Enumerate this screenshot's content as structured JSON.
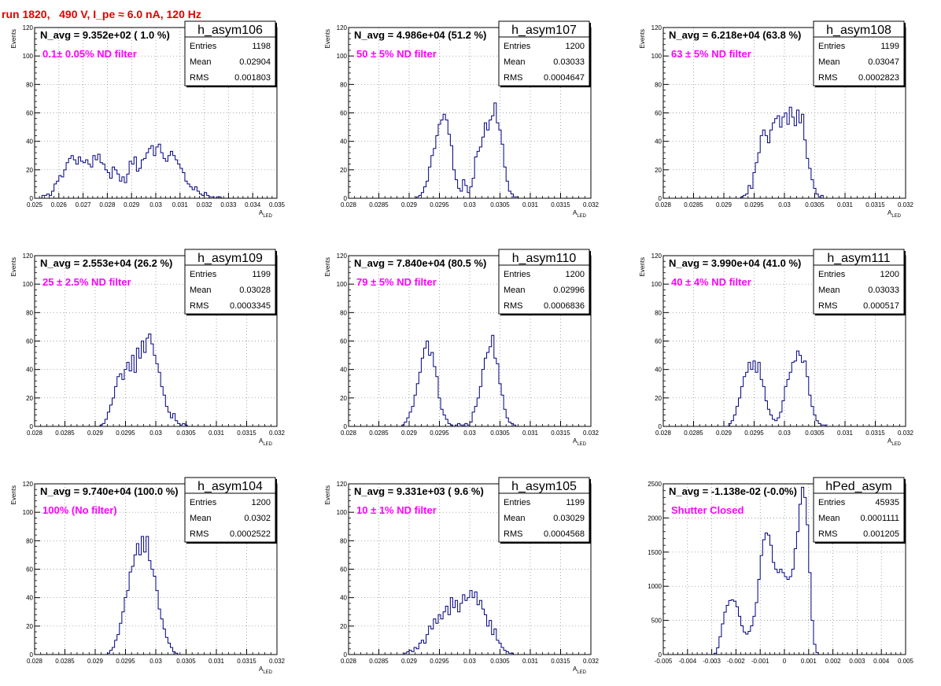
{
  "page_title": "run 1820,   490 V, I_pe ≈ 6.0 nA, 120 Hz",
  "colors": {
    "title": "#e30000",
    "hist": "#00007f",
    "annotation": "#ff00ff",
    "grid": "#808080"
  },
  "chart_data": [
    {
      "type": "histogram",
      "name": "h_asym106",
      "navg": "N_avg = 9.352e+02 ( 1.0 %)",
      "note": "0.1± 0.05% ND filter",
      "stats": [
        [
          "Entries",
          "1198"
        ],
        [
          "Mean",
          "0.02904"
        ],
        [
          "RMS",
          "0.001803"
        ]
      ],
      "ylabel": "Events",
      "xlabel": "A_LED",
      "grid": true,
      "xlim": [
        0.025,
        0.035
      ],
      "ylim": [
        0,
        120
      ],
      "xticks": [
        "0.025",
        "0.026",
        "0.027",
        "0.028",
        "0.029",
        "0.03",
        "0.031",
        "0.032",
        "0.033",
        "0.034",
        "0.035"
      ],
      "yticks": [
        "0",
        "20",
        "40",
        "60",
        "80",
        "100",
        "120"
      ],
      "bin_width": 0.0001,
      "values": [
        0,
        0,
        0,
        2,
        2,
        3,
        2,
        5,
        10,
        12,
        16,
        15,
        20,
        25,
        28,
        30,
        27,
        24,
        29,
        26,
        25,
        27,
        24,
        22,
        30,
        27,
        31,
        25,
        24,
        20,
        18,
        14,
        22,
        20,
        17,
        12,
        15,
        11,
        17,
        26,
        24,
        29,
        19,
        21,
        27,
        28,
        32,
        35,
        37,
        30,
        36,
        38,
        32,
        28,
        26,
        30,
        33,
        30,
        27,
        24,
        21,
        18,
        12,
        10,
        8,
        6,
        8,
        5,
        3,
        2,
        4,
        2,
        1,
        1,
        0,
        1,
        1,
        0,
        0,
        0,
        0,
        0,
        0,
        0,
        0,
        0,
        0,
        0,
        0,
        0,
        0,
        0,
        0,
        0,
        0,
        0,
        0,
        0,
        0,
        0
      ]
    },
    {
      "type": "histogram",
      "name": "h_asym107",
      "navg": "N_avg = 4.986e+04 (51.2 %)",
      "note": "50 ± 5% ND filter",
      "stats": [
        [
          "Entries",
          "1200"
        ],
        [
          "Mean",
          "0.03033"
        ],
        [
          "RMS",
          "0.0004647"
        ]
      ],
      "ylabel": "Events",
      "xlabel": "A_LED",
      "grid": true,
      "xlim": [
        0.028,
        0.032
      ],
      "ylim": [
        0,
        120
      ],
      "xticks": [
        "0.028",
        "0.0285",
        "0.029",
        "0.0295",
        "0.03",
        "0.0305",
        "0.031",
        "0.0315",
        "0.032"
      ],
      "yticks": [
        "0",
        "20",
        "40",
        "60",
        "80",
        "100",
        "120"
      ],
      "bin_width": 4e-05,
      "values": [
        0,
        0,
        0,
        0,
        0,
        0,
        0,
        0,
        0,
        0,
        0,
        0,
        0,
        0,
        0,
        0,
        0,
        0,
        0,
        0,
        0,
        0,
        0,
        0,
        0,
        0,
        0,
        0,
        1,
        2,
        4,
        8,
        12,
        22,
        30,
        35,
        44,
        52,
        55,
        59,
        55,
        45,
        37,
        20,
        13,
        7,
        5,
        13,
        9,
        4,
        8,
        14,
        29,
        33,
        36,
        43,
        53,
        48,
        55,
        58,
        67,
        53,
        48,
        38,
        22,
        12,
        5,
        3,
        1,
        1,
        0,
        0,
        0,
        0,
        0,
        0,
        0,
        0,
        0,
        0,
        0,
        0,
        0,
        0,
        0,
        0,
        0,
        0,
        0,
        0,
        0,
        0,
        0,
        0,
        0,
        0,
        0,
        0,
        0,
        0
      ]
    },
    {
      "type": "histogram",
      "name": "h_asym108",
      "navg": "N_avg = 6.218e+04 (63.8 %)",
      "note": "63 ± 5% ND filter",
      "stats": [
        [
          "Entries",
          "1199"
        ],
        [
          "Mean",
          "0.03047"
        ],
        [
          "RMS",
          "0.0002823"
        ]
      ],
      "ylabel": "Events",
      "xlabel": "A_LED",
      "grid": true,
      "xlim": [
        0.028,
        0.032
      ],
      "ylim": [
        0,
        120
      ],
      "xticks": [
        "0.028",
        "0.0285",
        "0.029",
        "0.0295",
        "0.03",
        "0.0305",
        "0.031",
        "0.0315",
        "0.032"
      ],
      "yticks": [
        "0",
        "20",
        "40",
        "60",
        "80",
        "100",
        "120"
      ],
      "bin_width": 4e-05,
      "values": [
        0,
        0,
        0,
        0,
        0,
        0,
        0,
        0,
        0,
        0,
        0,
        0,
        0,
        0,
        0,
        0,
        0,
        0,
        0,
        0,
        0,
        0,
        0,
        0,
        0,
        0,
        0,
        0,
        0,
        0,
        0,
        0,
        1,
        2,
        3,
        9,
        7,
        18,
        25,
        32,
        44,
        48,
        44,
        39,
        48,
        53,
        56,
        58,
        50,
        57,
        60,
        52,
        64,
        57,
        51,
        62,
        53,
        59,
        41,
        28,
        21,
        13,
        7,
        3,
        1,
        2,
        0,
        0,
        0,
        0,
        0,
        0,
        0,
        0,
        0,
        0,
        0,
        0,
        0,
        0,
        0,
        0,
        0,
        0,
        0,
        0,
        0,
        0,
        0,
        0,
        0,
        0,
        0,
        0,
        0,
        0,
        0,
        0,
        0,
        0
      ]
    },
    {
      "type": "histogram",
      "name": "h_asym109",
      "navg": "N_avg = 2.553e+04 (26.2 %)",
      "note": "25 ± 2.5% ND filter",
      "stats": [
        [
          "Entries",
          "1199"
        ],
        [
          "Mean",
          "0.03028"
        ],
        [
          "RMS",
          "0.0003345"
        ]
      ],
      "ylabel": "Events",
      "xlabel": "A_LED",
      "grid": true,
      "xlim": [
        0.028,
        0.032
      ],
      "ylim": [
        0,
        120
      ],
      "xticks": [
        "0.028",
        "0.0285",
        "0.029",
        "0.0295",
        "0.03",
        "0.0305",
        "0.031",
        "0.0315",
        "0.032"
      ],
      "yticks": [
        "0",
        "20",
        "40",
        "60",
        "80",
        "100",
        "120"
      ],
      "bin_width": 4e-05,
      "values": [
        0,
        0,
        0,
        0,
        0,
        0,
        0,
        0,
        0,
        0,
        0,
        0,
        0,
        0,
        0,
        0,
        0,
        0,
        0,
        0,
        0,
        0,
        0,
        0,
        0,
        0,
        0,
        1,
        2,
        5,
        10,
        15,
        20,
        28,
        35,
        37,
        33,
        40,
        45,
        39,
        50,
        38,
        55,
        48,
        60,
        52,
        62,
        65,
        58,
        50,
        44,
        38,
        28,
        22,
        14,
        10,
        6,
        9,
        4,
        2,
        1,
        2,
        1,
        0,
        0,
        0,
        0,
        0,
        0,
        0,
        0,
        0,
        0,
        0,
        0,
        0,
        0,
        0,
        0,
        0,
        0,
        0,
        0,
        0,
        0,
        0,
        0,
        0,
        0,
        0,
        0,
        0,
        0,
        0,
        0,
        0,
        0,
        0,
        0,
        0
      ]
    },
    {
      "type": "histogram",
      "name": "h_asym110",
      "navg": "N_avg = 7.840e+04 (80.5 %)",
      "note": "79 ± 5% ND filter",
      "stats": [
        [
          "Entries",
          "1200"
        ],
        [
          "Mean",
          "0.02996"
        ],
        [
          "RMS",
          "0.0006836"
        ]
      ],
      "ylabel": "Events",
      "xlabel": "A_LED",
      "grid": true,
      "xlim": [
        0.028,
        0.032
      ],
      "ylim": [
        0,
        120
      ],
      "xticks": [
        "0.028",
        "0.0285",
        "0.029",
        "0.0295",
        "0.03",
        "0.0305",
        "0.031",
        "0.0315",
        "0.032"
      ],
      "yticks": [
        "0",
        "20",
        "40",
        "60",
        "80",
        "100",
        "120"
      ],
      "bin_width": 4e-05,
      "values": [
        0,
        0,
        0,
        0,
        0,
        0,
        0,
        0,
        0,
        0,
        0,
        0,
        0,
        0,
        0,
        0,
        0,
        0,
        0,
        0,
        0,
        0,
        1,
        3,
        6,
        10,
        14,
        22,
        30,
        38,
        48,
        55,
        60,
        50,
        52,
        42,
        35,
        20,
        12,
        8,
        5,
        2,
        1,
        0,
        1,
        2,
        1,
        0,
        2,
        1,
        3,
        10,
        14,
        20,
        28,
        40,
        48,
        52,
        56,
        64,
        48,
        44,
        30,
        22,
        12,
        6,
        3,
        2,
        1,
        0,
        0,
        0,
        0,
        0,
        0,
        0,
        0,
        0,
        0,
        0,
        0,
        0,
        0,
        0,
        0,
        0,
        0,
        0,
        0,
        0,
        0,
        0,
        0,
        0,
        0,
        0,
        0,
        0,
        0,
        0
      ]
    },
    {
      "type": "histogram",
      "name": "h_asym111",
      "navg": "N_avg = 3.990e+04 (41.0 %)",
      "note": "40 ± 4% ND filter",
      "stats": [
        [
          "Entries",
          "1200"
        ],
        [
          "Mean",
          "0.03033"
        ],
        [
          "RMS",
          "0.000517"
        ]
      ],
      "ylabel": "Events",
      "xlabel": "A_LED",
      "grid": true,
      "xlim": [
        0.028,
        0.032
      ],
      "ylim": [
        0,
        120
      ],
      "xticks": [
        "0.028",
        "0.0285",
        "0.029",
        "0.0295",
        "0.03",
        "0.0305",
        "0.031",
        "0.0315",
        "0.032"
      ],
      "yticks": [
        "0",
        "20",
        "40",
        "60",
        "80",
        "100",
        "120"
      ],
      "bin_width": 4e-05,
      "values": [
        0,
        0,
        0,
        0,
        0,
        0,
        0,
        0,
        0,
        0,
        0,
        0,
        0,
        0,
        0,
        0,
        0,
        0,
        0,
        0,
        0,
        0,
        0,
        0,
        0,
        0,
        0,
        2,
        4,
        8,
        14,
        20,
        28,
        35,
        38,
        45,
        40,
        46,
        38,
        45,
        33,
        28,
        18,
        12,
        8,
        5,
        4,
        6,
        10,
        18,
        28,
        33,
        38,
        45,
        46,
        53,
        50,
        45,
        46,
        35,
        22,
        14,
        8,
        4,
        2,
        1,
        1,
        0,
        0,
        0,
        0,
        0,
        0,
        0,
        0,
        0,
        0,
        0,
        0,
        0,
        0,
        0,
        0,
        0,
        0,
        0,
        0,
        0,
        0,
        0,
        0,
        0,
        0,
        0,
        0,
        0,
        0,
        0,
        0,
        0
      ]
    },
    {
      "type": "histogram",
      "name": "h_asym104",
      "navg": "N_avg = 9.740e+04 (100.0 %)",
      "note": "100% (No filter)",
      "stats": [
        [
          "Entries",
          "1200"
        ],
        [
          "Mean",
          "0.0302"
        ],
        [
          "RMS",
          "0.0002522"
        ]
      ],
      "ylabel": "Events",
      "xlabel": "A_LED",
      "grid": true,
      "xlim": [
        0.028,
        0.032
      ],
      "ylim": [
        0,
        120
      ],
      "xticks": [
        "0.028",
        "0.0285",
        "0.029",
        "0.0295",
        "0.03",
        "0.0305",
        "0.031",
        "0.0315",
        "0.032"
      ],
      "yticks": [
        "0",
        "20",
        "40",
        "60",
        "80",
        "100",
        "120"
      ],
      "bin_width": 4e-05,
      "values": [
        0,
        0,
        0,
        0,
        0,
        0,
        0,
        0,
        0,
        0,
        0,
        0,
        0,
        0,
        0,
        0,
        0,
        0,
        0,
        0,
        0,
        0,
        0,
        0,
        0,
        0,
        0,
        0,
        0,
        0,
        1,
        3,
        5,
        10,
        14,
        22,
        30,
        40,
        45,
        58,
        62,
        70,
        78,
        70,
        83,
        72,
        83,
        66,
        60,
        55,
        45,
        32,
        25,
        18,
        12,
        8,
        5,
        2,
        1,
        0,
        0,
        0,
        0,
        0,
        0,
        0,
        0,
        0,
        0,
        0,
        0,
        0,
        0,
        0,
        0,
        0,
        0,
        0,
        0,
        0,
        0,
        0,
        0,
        0,
        0,
        0,
        0,
        0,
        0,
        0,
        0,
        0,
        0,
        0,
        0,
        0,
        0,
        0,
        0,
        0
      ]
    },
    {
      "type": "histogram",
      "name": "h_asym105",
      "navg": "N_avg = 9.331e+03 ( 9.6 %)",
      "note": "10 ± 1% ND filter",
      "stats": [
        [
          "Entries",
          "1199"
        ],
        [
          "Mean",
          "0.03029"
        ],
        [
          "RMS",
          "0.0004568"
        ]
      ],
      "ylabel": "Events",
      "xlabel": "A_LED",
      "grid": true,
      "xlim": [
        0.028,
        0.032
      ],
      "ylim": [
        0,
        120
      ],
      "xticks": [
        "0.028",
        "0.0285",
        "0.029",
        "0.0295",
        "0.03",
        "0.0305",
        "0.031",
        "0.0315",
        "0.032"
      ],
      "yticks": [
        "0",
        "20",
        "40",
        "60",
        "80",
        "100",
        "120"
      ],
      "bin_width": 4e-05,
      "values": [
        0,
        0,
        0,
        0,
        0,
        0,
        0,
        0,
        0,
        0,
        0,
        0,
        0,
        0,
        0,
        0,
        0,
        0,
        0,
        0,
        0,
        0,
        0,
        1,
        2,
        3,
        2,
        5,
        4,
        8,
        10,
        8,
        14,
        20,
        18,
        25,
        22,
        28,
        25,
        30,
        34,
        28,
        40,
        33,
        38,
        30,
        36,
        42,
        38,
        40,
        45,
        40,
        44,
        35,
        38,
        32,
        28,
        20,
        24,
        14,
        18,
        10,
        8,
        5,
        3,
        2,
        1,
        1,
        0,
        0,
        0,
        0,
        0,
        0,
        0,
        0,
        0,
        0,
        0,
        0,
        0,
        0,
        0,
        0,
        0,
        0,
        0,
        0,
        0,
        0,
        0,
        0,
        0,
        0,
        0,
        0,
        0,
        0,
        0,
        0
      ]
    },
    {
      "type": "histogram",
      "name": "hPed_asym",
      "navg": "N_avg = -1.138e-02 (-0.0%)",
      "note": "Shutter Closed",
      "stats": [
        [
          "Entries",
          "45935"
        ],
        [
          "Mean",
          "0.0001111"
        ],
        [
          "RMS",
          "0.001205"
        ]
      ],
      "ylabel": "",
      "xlabel": "",
      "grid": true,
      "xlim": [
        -0.005,
        0.005
      ],
      "ylim": [
        0,
        2500
      ],
      "xticks": [
        "-0.005",
        "-0.004",
        "-0.003",
        "-0.002",
        "-0.001",
        "0",
        "0.001",
        "0.002",
        "0.003",
        "0.004",
        "0.005"
      ],
      "yticks": [
        "0",
        "500",
        "1000",
        "1500",
        "2000",
        "2500"
      ],
      "bin_width": 0.0001,
      "values": [
        0,
        0,
        0,
        0,
        0,
        0,
        0,
        0,
        0,
        0,
        0,
        0,
        0,
        0,
        0,
        0,
        0,
        0,
        0,
        0,
        0,
        20,
        100,
        260,
        450,
        620,
        720,
        790,
        800,
        780,
        700,
        560,
        420,
        330,
        300,
        340,
        420,
        560,
        760,
        1100,
        1450,
        1680,
        1780,
        1750,
        1600,
        1350,
        1250,
        1200,
        1250,
        1200,
        1140,
        1100,
        1140,
        1250,
        1550,
        1800,
        2200,
        2450,
        2300,
        1900,
        1200,
        500,
        150,
        30,
        0,
        0,
        0,
        0,
        0,
        0,
        0,
        0,
        0,
        0,
        0,
        0,
        0,
        0,
        0,
        0,
        0,
        0,
        0,
        0,
        0,
        0,
        0,
        0,
        0,
        0,
        0,
        0,
        0,
        0,
        0,
        0,
        0,
        0,
        0,
        0
      ]
    }
  ]
}
